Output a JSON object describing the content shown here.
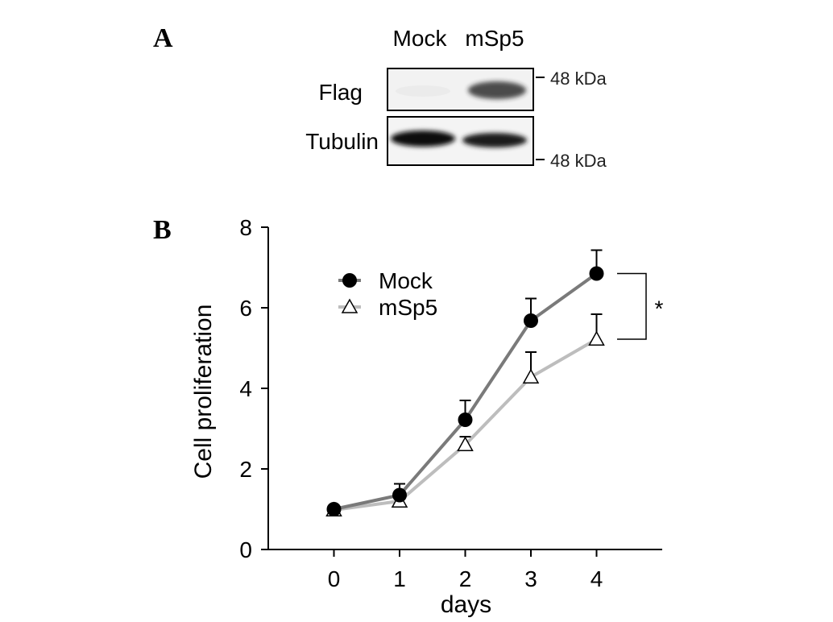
{
  "panel_a": {
    "label": "A",
    "lanes": [
      "Mock",
      "mSp5"
    ],
    "blots": [
      {
        "name": "Flag",
        "marker": "48 kDa",
        "bands": [
          0.04,
          0.75
        ]
      },
      {
        "name": "Tubulin",
        "marker": "48 kDa",
        "bands": [
          0.95,
          0.9
        ]
      }
    ]
  },
  "panel_b": {
    "label": "B",
    "significance": "*"
  },
  "chart_data": {
    "type": "line",
    "xlabel": "days",
    "ylabel": "Cell proliferation",
    "x": [
      0,
      1,
      2,
      3,
      4
    ],
    "xlim": [
      -1,
      5
    ],
    "ylim": [
      0,
      8
    ],
    "yticks": [
      0,
      2,
      4,
      6,
      8
    ],
    "legend_position": "top-left",
    "grid": false,
    "series": [
      {
        "name": "Mock",
        "marker": "filled-circle",
        "color": "#7a7a7a",
        "values": [
          1.0,
          1.35,
          3.22,
          5.68,
          6.85
        ],
        "error": [
          0.05,
          0.28,
          0.48,
          0.55,
          0.58
        ]
      },
      {
        "name": "mSp5",
        "marker": "open-triangle",
        "color": "#bdbdbd",
        "values": [
          0.98,
          1.2,
          2.6,
          4.28,
          5.22
        ],
        "error": [
          0.05,
          0.12,
          0.2,
          0.62,
          0.62
        ]
      }
    ]
  }
}
